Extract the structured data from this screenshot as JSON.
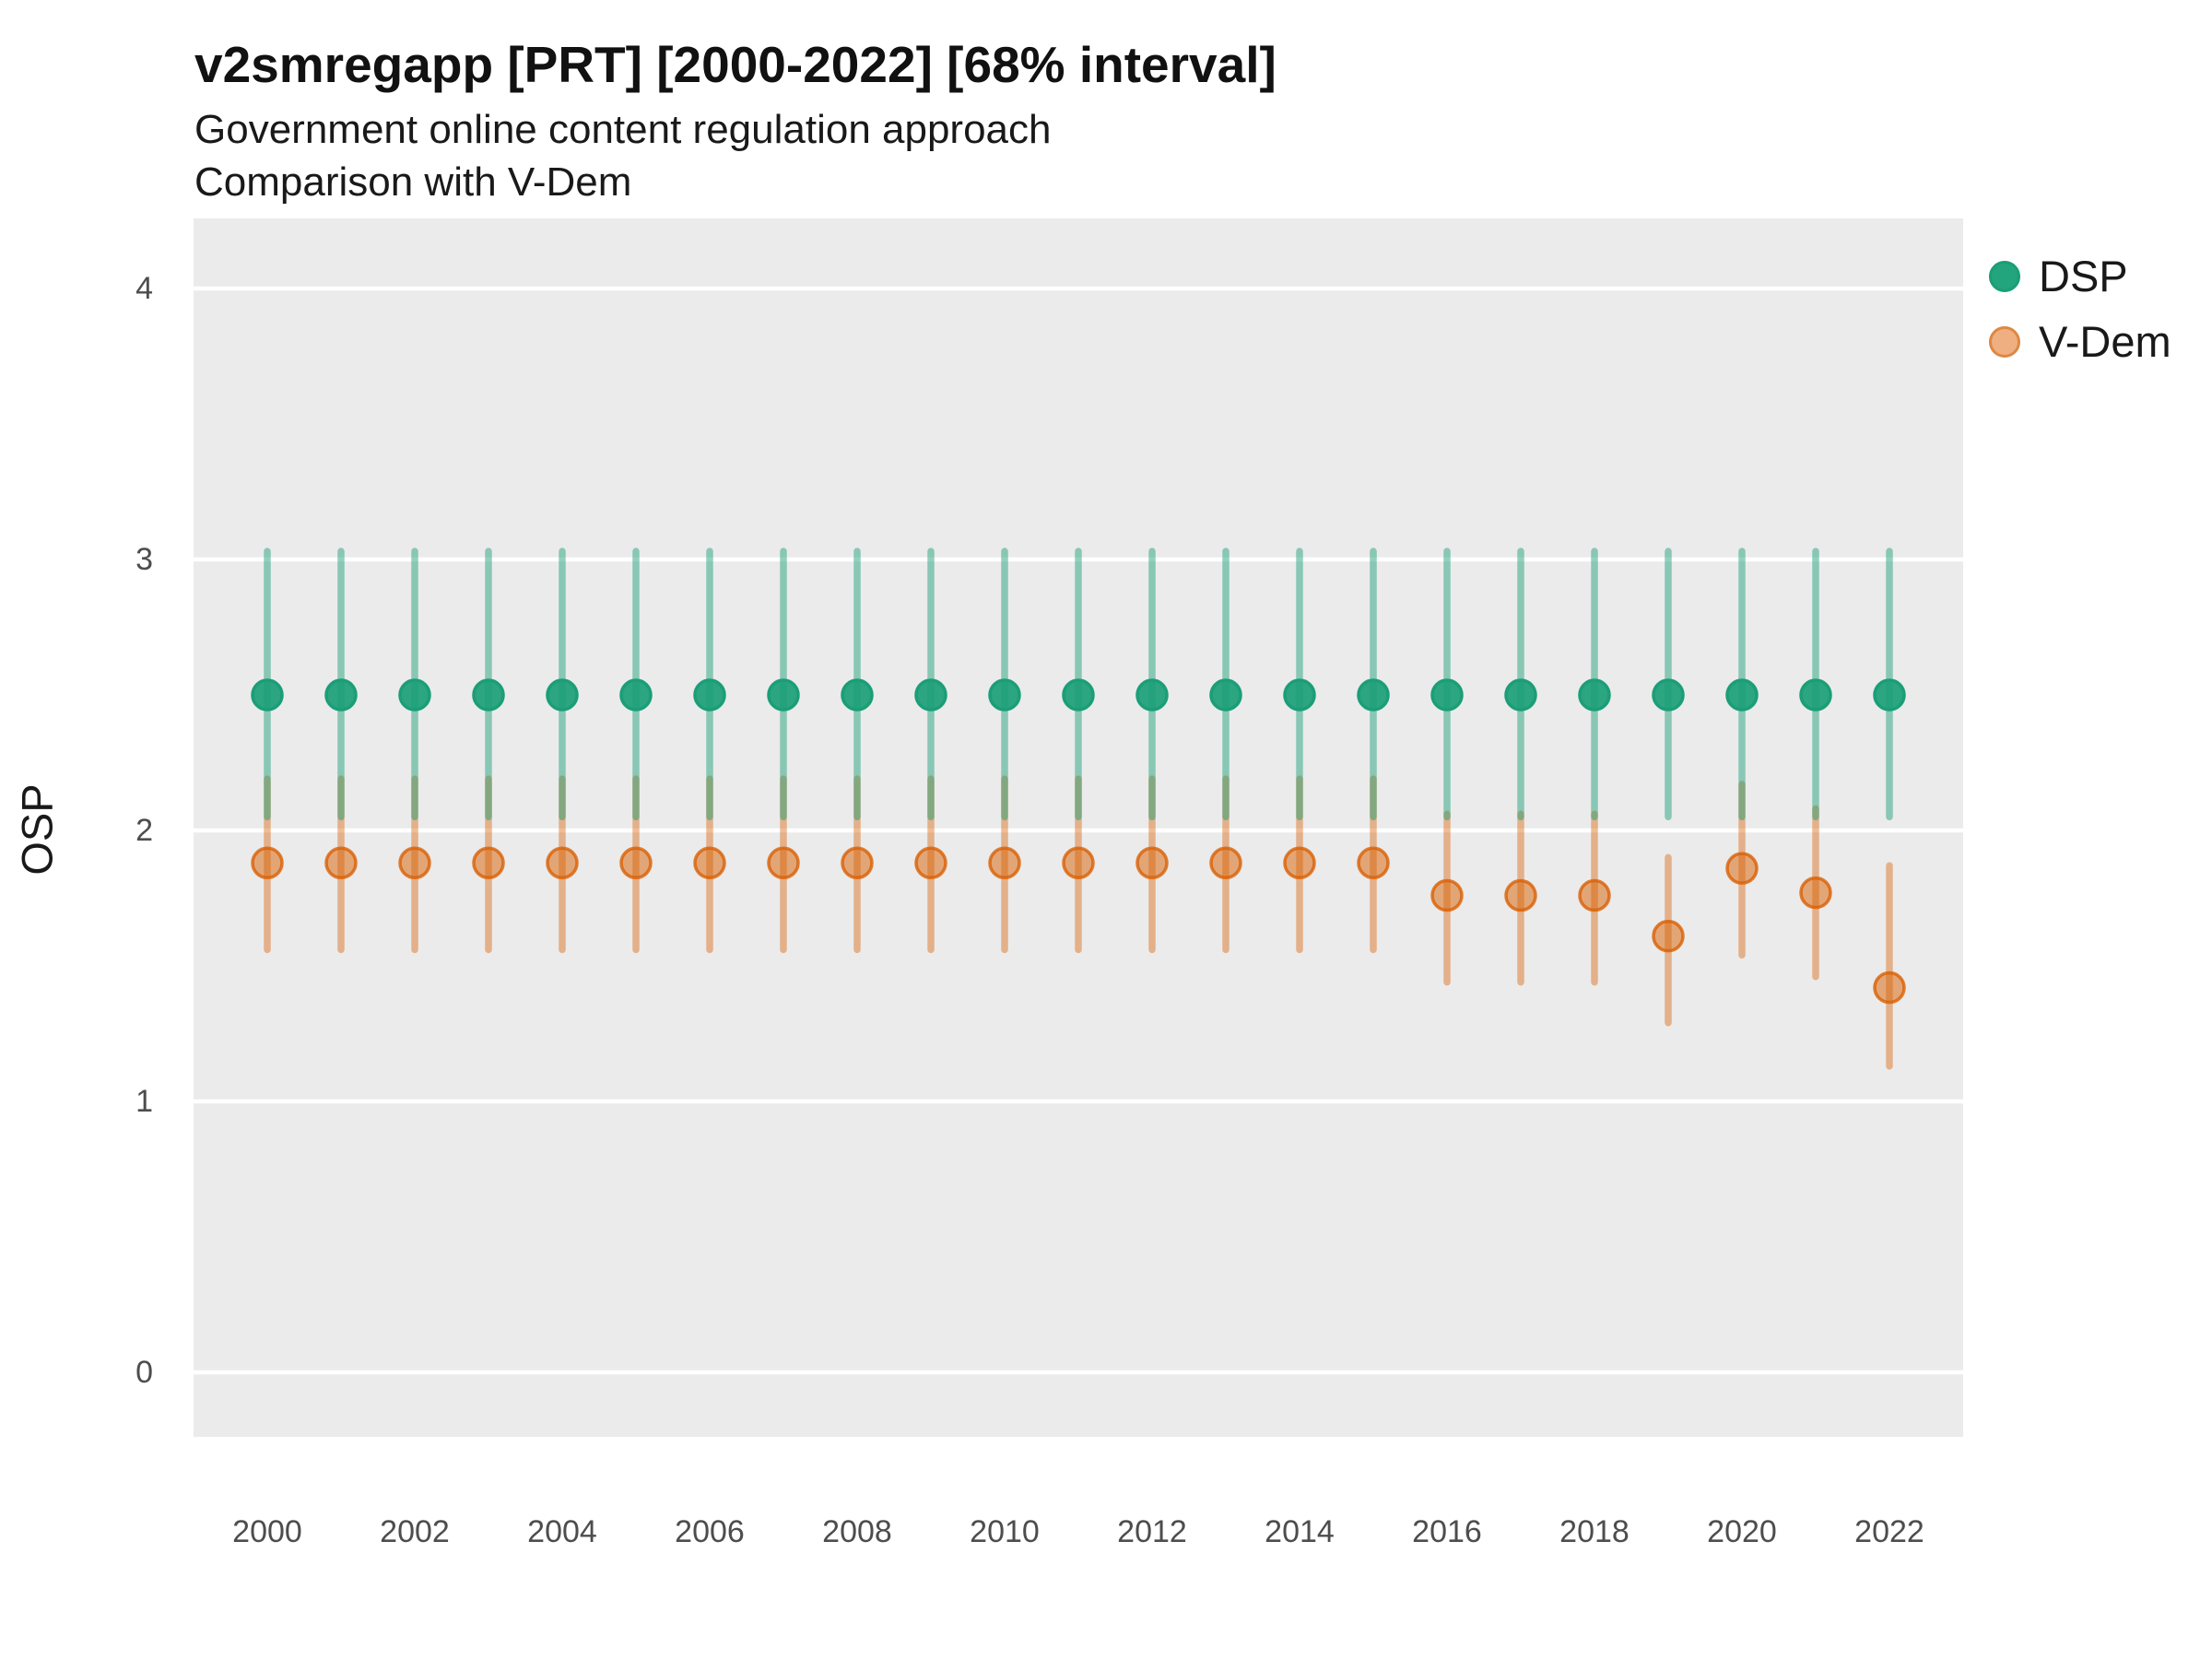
{
  "header": {
    "title": "v2smregapp [PRT] [2000-2022] [68% interval]",
    "subtitle_line1": "Government online content regulation approach",
    "subtitle_line2": "Comparison with V-Dem"
  },
  "legend": {
    "position": "right-top",
    "items": [
      {
        "label": "DSP",
        "marker_fill": "#22A47C",
        "marker_stroke": "#1B9E77"
      },
      {
        "label": "V-Dem",
        "marker_fill": "#EFAF80",
        "marker_stroke": "#DD8843"
      }
    ]
  },
  "chart_data": {
    "type": "pointrange",
    "title": "v2smregapp [PRT] [2000-2022] [68% interval]",
    "subtitle": "Government online content regulation approach — Comparison with V-Dem",
    "interval": "68%",
    "xlabel": "",
    "ylabel": "OSP",
    "xlim": [
      1999,
      2023
    ],
    "ylim": [
      -0.24,
      4.26
    ],
    "x_ticks": [
      2000,
      2002,
      2004,
      2006,
      2008,
      2010,
      2012,
      2014,
      2016,
      2018,
      2020,
      2022
    ],
    "y_ticks": [
      0,
      1,
      2,
      3,
      4
    ],
    "grid": "major-horizontal",
    "panel_bg": "#EBEBEB",
    "gridline_color": "#FFFFFF",
    "tick_label_color": "#4D4D4D",
    "series": [
      {
        "name": "DSP",
        "color": "#1B9E77",
        "bar_opacity": 0.48,
        "point_fill_opacity": 0.92,
        "point_stroke_opacity": 1.0,
        "points": [
          {
            "year": 2000,
            "y": 2.5,
            "lo": 2.05,
            "hi": 3.03
          },
          {
            "year": 2001,
            "y": 2.5,
            "lo": 2.05,
            "hi": 3.03
          },
          {
            "year": 2002,
            "y": 2.5,
            "lo": 2.05,
            "hi": 3.03
          },
          {
            "year": 2003,
            "y": 2.5,
            "lo": 2.05,
            "hi": 3.03
          },
          {
            "year": 2004,
            "y": 2.5,
            "lo": 2.05,
            "hi": 3.03
          },
          {
            "year": 2005,
            "y": 2.5,
            "lo": 2.05,
            "hi": 3.03
          },
          {
            "year": 2006,
            "y": 2.5,
            "lo": 2.05,
            "hi": 3.03
          },
          {
            "year": 2007,
            "y": 2.5,
            "lo": 2.05,
            "hi": 3.03
          },
          {
            "year": 2008,
            "y": 2.5,
            "lo": 2.05,
            "hi": 3.03
          },
          {
            "year": 2009,
            "y": 2.5,
            "lo": 2.05,
            "hi": 3.03
          },
          {
            "year": 2010,
            "y": 2.5,
            "lo": 2.05,
            "hi": 3.03
          },
          {
            "year": 2011,
            "y": 2.5,
            "lo": 2.05,
            "hi": 3.03
          },
          {
            "year": 2012,
            "y": 2.5,
            "lo": 2.05,
            "hi": 3.03
          },
          {
            "year": 2013,
            "y": 2.5,
            "lo": 2.05,
            "hi": 3.03
          },
          {
            "year": 2014,
            "y": 2.5,
            "lo": 2.05,
            "hi": 3.03
          },
          {
            "year": 2015,
            "y": 2.5,
            "lo": 2.05,
            "hi": 3.03
          },
          {
            "year": 2016,
            "y": 2.5,
            "lo": 2.05,
            "hi": 3.03
          },
          {
            "year": 2017,
            "y": 2.5,
            "lo": 2.05,
            "hi": 3.03
          },
          {
            "year": 2018,
            "y": 2.5,
            "lo": 2.05,
            "hi": 3.03
          },
          {
            "year": 2019,
            "y": 2.5,
            "lo": 2.05,
            "hi": 3.03
          },
          {
            "year": 2020,
            "y": 2.5,
            "lo": 2.05,
            "hi": 3.03
          },
          {
            "year": 2021,
            "y": 2.5,
            "lo": 2.05,
            "hi": 3.03
          },
          {
            "year": 2022,
            "y": 2.5,
            "lo": 2.05,
            "hi": 3.03
          }
        ]
      },
      {
        "name": "V-Dem",
        "color": "#D95F02",
        "bar_opacity": 0.42,
        "point_fill_opacity": 0.5,
        "point_stroke_opacity": 0.8,
        "points": [
          {
            "year": 2000,
            "y": 1.88,
            "lo": 1.56,
            "hi": 2.19
          },
          {
            "year": 2001,
            "y": 1.88,
            "lo": 1.56,
            "hi": 2.19
          },
          {
            "year": 2002,
            "y": 1.88,
            "lo": 1.56,
            "hi": 2.19
          },
          {
            "year": 2003,
            "y": 1.88,
            "lo": 1.56,
            "hi": 2.19
          },
          {
            "year": 2004,
            "y": 1.88,
            "lo": 1.56,
            "hi": 2.19
          },
          {
            "year": 2005,
            "y": 1.88,
            "lo": 1.56,
            "hi": 2.19
          },
          {
            "year": 2006,
            "y": 1.88,
            "lo": 1.56,
            "hi": 2.19
          },
          {
            "year": 2007,
            "y": 1.88,
            "lo": 1.56,
            "hi": 2.19
          },
          {
            "year": 2008,
            "y": 1.88,
            "lo": 1.56,
            "hi": 2.19
          },
          {
            "year": 2009,
            "y": 1.88,
            "lo": 1.56,
            "hi": 2.19
          },
          {
            "year": 2010,
            "y": 1.88,
            "lo": 1.56,
            "hi": 2.19
          },
          {
            "year": 2011,
            "y": 1.88,
            "lo": 1.56,
            "hi": 2.19
          },
          {
            "year": 2012,
            "y": 1.88,
            "lo": 1.56,
            "hi": 2.19
          },
          {
            "year": 2013,
            "y": 1.88,
            "lo": 1.56,
            "hi": 2.19
          },
          {
            "year": 2014,
            "y": 1.88,
            "lo": 1.56,
            "hi": 2.19
          },
          {
            "year": 2015,
            "y": 1.88,
            "lo": 1.56,
            "hi": 2.19
          },
          {
            "year": 2016,
            "y": 1.76,
            "lo": 1.44,
            "hi": 2.06
          },
          {
            "year": 2017,
            "y": 1.76,
            "lo": 1.44,
            "hi": 2.06
          },
          {
            "year": 2018,
            "y": 1.76,
            "lo": 1.44,
            "hi": 2.06
          },
          {
            "year": 2019,
            "y": 1.61,
            "lo": 1.29,
            "hi": 1.9
          },
          {
            "year": 2020,
            "y": 1.86,
            "lo": 1.54,
            "hi": 2.17
          },
          {
            "year": 2021,
            "y": 1.77,
            "lo": 1.46,
            "hi": 2.08
          },
          {
            "year": 2022,
            "y": 1.42,
            "lo": 1.13,
            "hi": 1.87
          }
        ]
      }
    ]
  }
}
